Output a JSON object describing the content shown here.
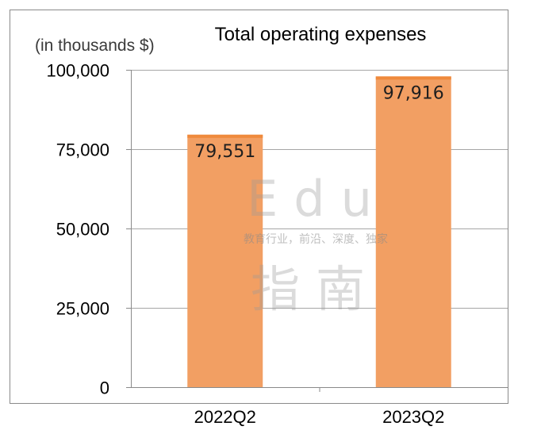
{
  "chart_data": {
    "type": "bar",
    "title": "Total operating expenses",
    "unit_label": "(in thousands $)",
    "categories": [
      "2022Q2",
      "2023Q2"
    ],
    "values": [
      79551,
      97916
    ],
    "value_labels": [
      "79,551",
      "97,916"
    ],
    "ylim": [
      0,
      100000
    ],
    "yticks": [
      0,
      25000,
      50000,
      75000,
      100000
    ],
    "ytick_labels": [
      "0",
      "25,000",
      "50,000",
      "75,000",
      "100,000"
    ],
    "grid": true,
    "bar_color": "#f29f63",
    "bar_top_color": "#ef8a3c"
  },
  "watermark": {
    "line1": "Edu",
    "line2": "教育行业，前沿、深度、独家",
    "line3": "指南"
  }
}
